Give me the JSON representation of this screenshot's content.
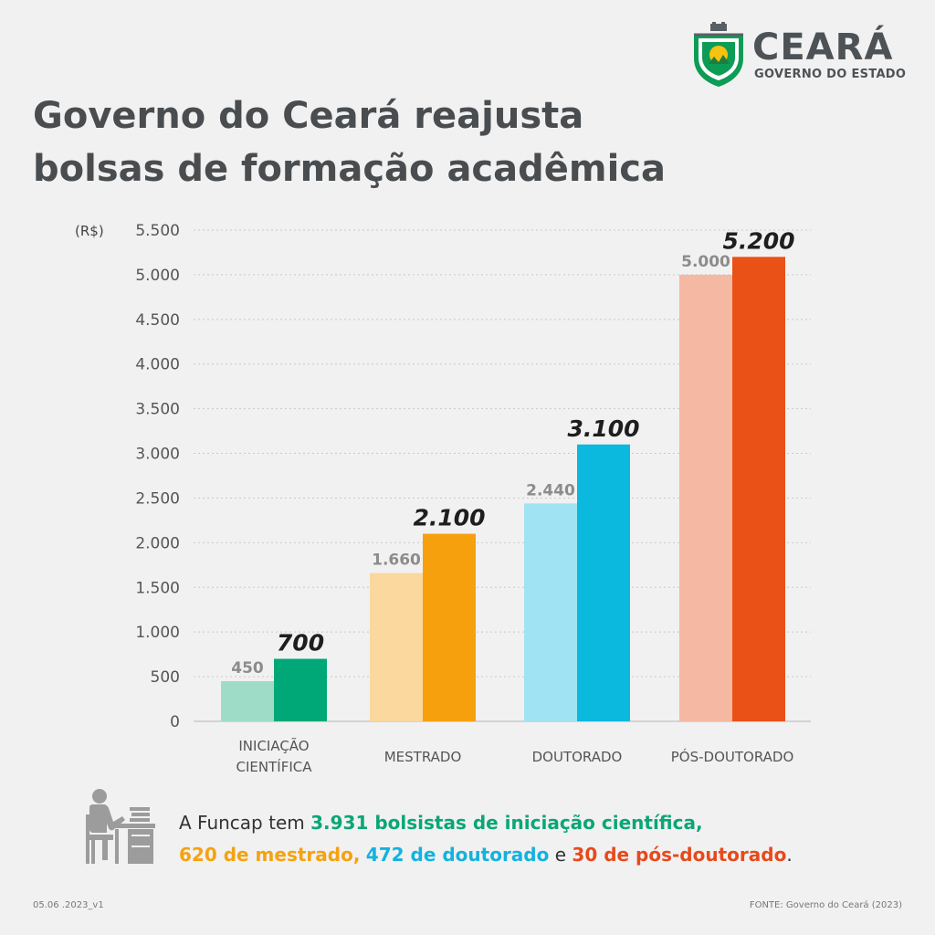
{
  "header": {
    "logo_name": "CEARÁ",
    "logo_sub": "GOVERNO DO ESTADO",
    "title_line1": "Governo do Ceará reajusta",
    "title_line2": "bolsas de formação acadêmica"
  },
  "chart_data": {
    "type": "bar",
    "unit_label": "(R$)",
    "categories": [
      "INICIAÇÃO CIENTÍFICA",
      "MESTRADO",
      "DOUTORADO",
      "PÓS-DOUTORADO"
    ],
    "category_lines": [
      [
        "INICIAÇÃO",
        "CIENTÍFICA"
      ],
      [
        "MESTRADO"
      ],
      [
        "DOUTORADO"
      ],
      [
        "PÓS-DOUTORADO"
      ]
    ],
    "series": [
      {
        "values": [
          450,
          1660,
          2440,
          5000
        ],
        "labels": [
          "450",
          "1.660",
          "2.440",
          "5.000"
        ]
      },
      {
        "values": [
          700,
          2100,
          3100,
          5200
        ],
        "labels": [
          "700",
          "2.100",
          "3.100",
          "5.200"
        ]
      }
    ],
    "colors_old": [
      "#9fdcc7",
      "#fbd89e",
      "#a0e3f2",
      "#f5b8a2"
    ],
    "colors_new": [
      "#00a877",
      "#f7a00d",
      "#0bb8de",
      "#e95116"
    ],
    "ylim": [
      0,
      5500
    ],
    "yticks": [
      0,
      500,
      1000,
      1500,
      2000,
      2500,
      3000,
      3500,
      4000,
      4500,
      5000,
      5500
    ],
    "ytick_labels": [
      "0",
      "500",
      "1.000",
      "1.500",
      "2.000",
      "2.500",
      "3.000",
      "3.500",
      "4.000",
      "4.500",
      "5.000",
      "5.500"
    ],
    "grid": true
  },
  "info": {
    "part1": "A Funcap tem ",
    "part2": "3.931 bolsistas de iniciação científica,",
    "part3": "620 de mestrado,",
    "part4": " ",
    "part5": "472 de doutorado",
    "part6": " e ",
    "part7": "30 de pós-doutorado",
    "part8": "."
  },
  "footer": {
    "version": "05.06 .2023_v1",
    "source": "FONTE: Governo do Ceará (2023)"
  },
  "icons": {
    "logo": "ceara-coat-of-arms-icon",
    "scholar": "person-at-desk-icon"
  }
}
